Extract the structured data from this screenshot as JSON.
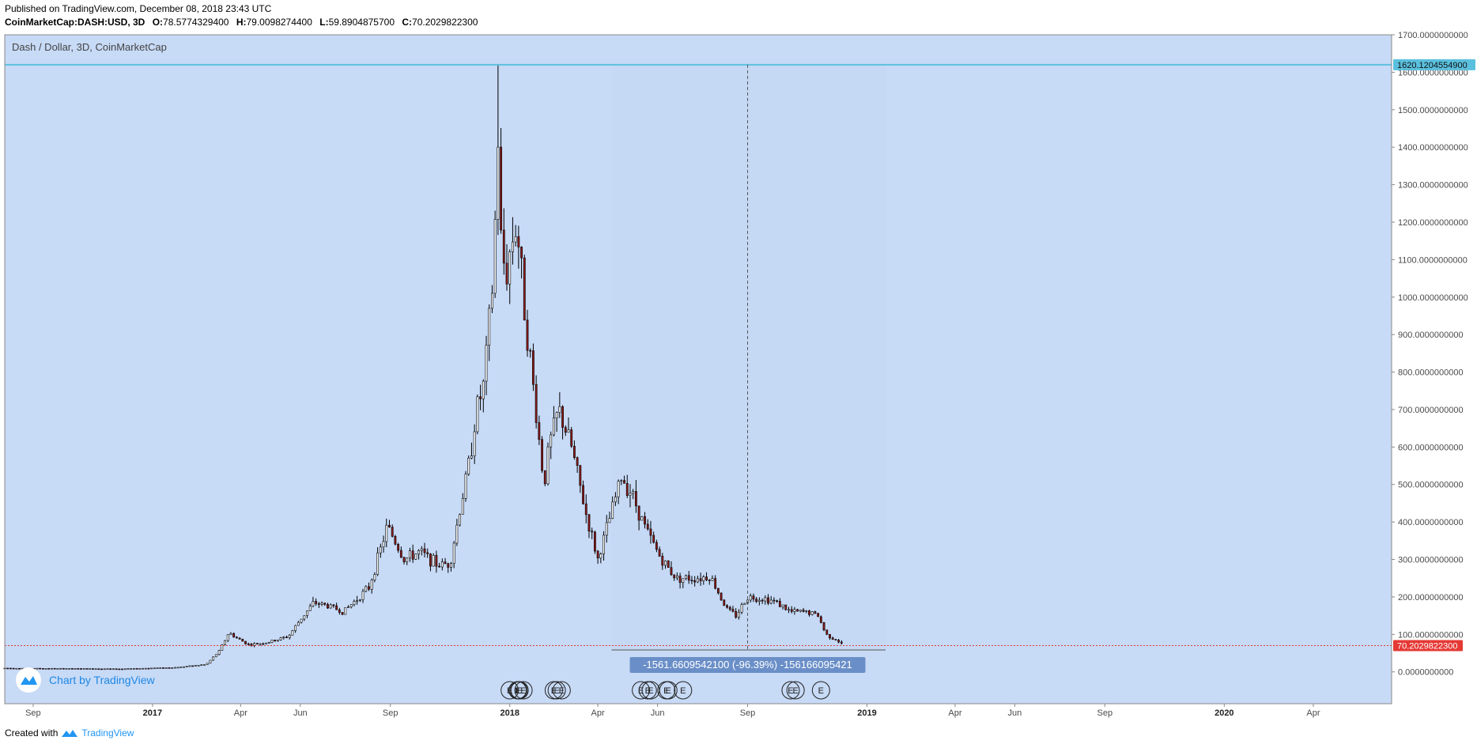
{
  "header": {
    "published": "Published on TradingView.com, December 08, 2018 23:43 UTC",
    "symbol": "CoinMarketCap:DASH:USD, 3D",
    "o_label": "O:",
    "o_value": "78.5774329400",
    "h_label": "H:",
    "h_value": "79.0098274400",
    "l_label": "L:",
    "l_value": "59.8904875700",
    "c_label": "C:",
    "c_value": "70.2029822300"
  },
  "footer": {
    "created_with": "Created with",
    "brand": "TradingView"
  },
  "watermark": {
    "label": "Chart by TradingView"
  },
  "colors": {
    "background": "#c7daf6",
    "measure_zone": "#c5d9f5",
    "candle_up": "#ffffff",
    "candle_down": "#8b1a1a",
    "wick": "#000000",
    "hline": "#5bc0de",
    "close_line": "#e53935",
    "close_badge": "#e53935",
    "measure_label": "#6a8fc8",
    "accent": "#2196f3"
  },
  "chart_data": {
    "type": "candlestick",
    "title": "Dash / Dollar, 3D, CoinMarketCap",
    "ylim": [
      -85,
      1700
    ],
    "yticks": [
      "1700.0000000000",
      "1600.0000000000",
      "1500.0000000000",
      "1400.0000000000",
      "1300.0000000000",
      "1200.0000000000",
      "1100.0000000000",
      "1000.0000000000",
      "900.0000000000",
      "800.0000000000",
      "700.0000000000",
      "600.0000000000",
      "500.0000000000",
      "400.0000000000",
      "300.0000000000",
      "200.0000000000",
      "100.0000000000",
      "0.0000000000"
    ],
    "ytick_values": [
      1700,
      1600,
      1500,
      1400,
      1300,
      1200,
      1100,
      1000,
      900,
      800,
      700,
      600,
      500,
      400,
      300,
      200,
      100,
      0
    ],
    "xlim": [
      "2016-08-03",
      "2020-06-20"
    ],
    "xticks": [
      {
        "label": "Sep",
        "date": "2016-09-01",
        "year": false
      },
      {
        "label": "2017",
        "date": "2017-01-01",
        "year": true
      },
      {
        "label": "Apr",
        "date": "2017-04-01",
        "year": false
      },
      {
        "label": "Jun",
        "date": "2017-06-01",
        "year": false
      },
      {
        "label": "Sep",
        "date": "2017-09-01",
        "year": false
      },
      {
        "label": "2018",
        "date": "2018-01-01",
        "year": true
      },
      {
        "label": "Apr",
        "date": "2018-04-01",
        "year": false
      },
      {
        "label": "Jun",
        "date": "2018-06-01",
        "year": false
      },
      {
        "label": "Sep",
        "date": "2018-09-01",
        "year": false
      },
      {
        "label": "2019",
        "date": "2019-01-01",
        "year": true
      },
      {
        "label": "Apr",
        "date": "2019-04-01",
        "year": false
      },
      {
        "label": "Jun",
        "date": "2019-06-01",
        "year": false
      },
      {
        "label": "Sep",
        "date": "2019-09-01",
        "year": false
      },
      {
        "label": "2020",
        "date": "2020-01-01",
        "year": true
      },
      {
        "label": "Apr",
        "date": "2020-04-01",
        "year": false
      }
    ],
    "series_anchors": [
      {
        "date": "2016-08-03",
        "close": 10
      },
      {
        "date": "2016-10-01",
        "close": 9
      },
      {
        "date": "2016-12-01",
        "close": 8
      },
      {
        "date": "2017-01-25",
        "close": 12
      },
      {
        "date": "2017-02-25",
        "close": 20
      },
      {
        "date": "2017-03-10",
        "close": 55
      },
      {
        "date": "2017-03-20",
        "close": 105
      },
      {
        "date": "2017-03-28",
        "close": 90
      },
      {
        "date": "2017-04-10",
        "close": 72
      },
      {
        "date": "2017-05-01",
        "close": 80
      },
      {
        "date": "2017-05-20",
        "close": 95
      },
      {
        "date": "2017-06-01",
        "close": 140
      },
      {
        "date": "2017-06-15",
        "close": 185
      },
      {
        "date": "2017-07-01",
        "close": 175
      },
      {
        "date": "2017-07-15",
        "close": 160
      },
      {
        "date": "2017-08-10",
        "close": 225
      },
      {
        "date": "2017-08-20",
        "close": 310
      },
      {
        "date": "2017-08-29",
        "close": 390
      },
      {
        "date": "2017-09-15",
        "close": 300
      },
      {
        "date": "2017-10-01",
        "close": 320
      },
      {
        "date": "2017-10-20",
        "close": 285
      },
      {
        "date": "2017-11-01",
        "close": 290
      },
      {
        "date": "2017-11-10",
        "close": 420
      },
      {
        "date": "2017-11-20",
        "close": 550
      },
      {
        "date": "2017-11-28",
        "close": 700
      },
      {
        "date": "2017-12-05",
        "close": 760
      },
      {
        "date": "2017-12-10",
        "close": 900
      },
      {
        "date": "2017-12-15",
        "close": 1050
      },
      {
        "date": "2017-12-20",
        "close": 1420
      },
      {
        "date": "2017-12-23",
        "close": 1150
      },
      {
        "date": "2017-12-28",
        "close": 1050
      },
      {
        "date": "2018-01-03",
        "close": 1150
      },
      {
        "date": "2018-01-08",
        "close": 1200
      },
      {
        "date": "2018-01-15",
        "close": 1000
      },
      {
        "date": "2018-01-25",
        "close": 760
      },
      {
        "date": "2018-02-05",
        "close": 500
      },
      {
        "date": "2018-02-10",
        "close": 600
      },
      {
        "date": "2018-02-20",
        "close": 700
      },
      {
        "date": "2018-03-05",
        "close": 600
      },
      {
        "date": "2018-03-20",
        "close": 420
      },
      {
        "date": "2018-04-01",
        "close": 300
      },
      {
        "date": "2018-04-12",
        "close": 400
      },
      {
        "date": "2018-04-25",
        "close": 520
      },
      {
        "date": "2018-05-05",
        "close": 480
      },
      {
        "date": "2018-05-20",
        "close": 380
      },
      {
        "date": "2018-06-05",
        "close": 300
      },
      {
        "date": "2018-06-20",
        "close": 250
      },
      {
        "date": "2018-07-10",
        "close": 250
      },
      {
        "date": "2018-07-25",
        "close": 255
      },
      {
        "date": "2018-08-10",
        "close": 170
      },
      {
        "date": "2018-08-20",
        "close": 150
      },
      {
        "date": "2018-09-01",
        "close": 200
      },
      {
        "date": "2018-09-20",
        "close": 195
      },
      {
        "date": "2018-10-01",
        "close": 185
      },
      {
        "date": "2018-10-15",
        "close": 160
      },
      {
        "date": "2018-11-01",
        "close": 160
      },
      {
        "date": "2018-11-12",
        "close": 150
      },
      {
        "date": "2018-11-20",
        "close": 100
      },
      {
        "date": "2018-12-01",
        "close": 85
      },
      {
        "date": "2018-12-08",
        "close": 70.2
      }
    ],
    "peak": {
      "date": "2017-12-20",
      "high": 1620.12
    },
    "close_value": 70.20298223,
    "close_label": "70.2029822300",
    "hline_value": 1620.12045549,
    "hline_label": "1620.1204554900",
    "measure": {
      "start_date": "2018-04-15",
      "end_date": "2019-01-20",
      "top": 1620.12,
      "bottom": 58.46,
      "label": "-1561.6609542100 (-96.39%) -156166095421"
    },
    "events": [
      {
        "date": "2018-01-01",
        "label": "E"
      },
      {
        "date": "2018-01-09",
        "label": "E"
      },
      {
        "date": "2018-01-10",
        "label": "E"
      },
      {
        "date": "2018-01-11",
        "label": "E"
      },
      {
        "date": "2018-01-15",
        "label": "E"
      },
      {
        "date": "2018-02-15",
        "label": "E"
      },
      {
        "date": "2018-02-18",
        "label": "E"
      },
      {
        "date": "2018-02-23",
        "label": "E"
      },
      {
        "date": "2018-05-15",
        "label": "E"
      },
      {
        "date": "2018-05-22",
        "label": "E"
      },
      {
        "date": "2018-05-25",
        "label": "E"
      },
      {
        "date": "2018-06-10",
        "label": "E"
      },
      {
        "date": "2018-06-12",
        "label": "E"
      },
      {
        "date": "2018-06-27",
        "label": "E"
      },
      {
        "date": "2018-10-15",
        "label": "E"
      },
      {
        "date": "2018-10-20",
        "label": "E"
      },
      {
        "date": "2018-11-15",
        "label": "E"
      }
    ]
  }
}
